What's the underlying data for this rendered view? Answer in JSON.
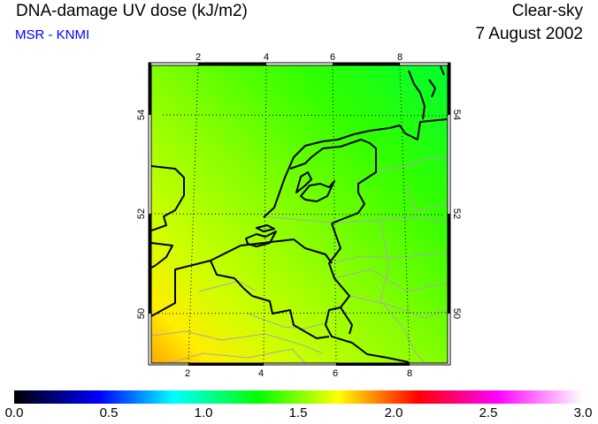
{
  "header": {
    "title": "DNA-damage UV dose (kJ/m2)",
    "subtitle": "MSR - KNMI",
    "condition": "Clear-sky",
    "date": "7 August 2002"
  },
  "map": {
    "lon_ticks_top": [
      "2",
      "4",
      "6",
      "8"
    ],
    "lon_ticks_bottom": [
      "2",
      "4",
      "6",
      "8"
    ],
    "lat_ticks_left": [
      "54",
      "52",
      "50"
    ],
    "lat_ticks_right": [
      "54",
      "52",
      "50"
    ],
    "colors": {
      "coast": "#000000",
      "borders": "#a0a0a0",
      "grid": "#000000",
      "field_low": "#ffb000",
      "field_high": "#00ff30"
    }
  },
  "colorbar": {
    "ticks": [
      "0.0",
      "0.5",
      "1.0",
      "1.5",
      "2.0",
      "2.5",
      "3.0"
    ],
    "range": [
      0,
      3
    ],
    "stops": [
      {
        "v": 0,
        "c": "#000000"
      },
      {
        "v": 0.45,
        "c": "#0000ff"
      },
      {
        "v": 0.84,
        "c": "#00ffff"
      },
      {
        "v": 1.29,
        "c": "#00ff00"
      },
      {
        "v": 1.71,
        "c": "#ffff00"
      },
      {
        "v": 2.13,
        "c": "#ff0000"
      },
      {
        "v": 2.55,
        "c": "#ff00ff"
      },
      {
        "v": 3.0,
        "c": "#ffffff"
      }
    ]
  }
}
